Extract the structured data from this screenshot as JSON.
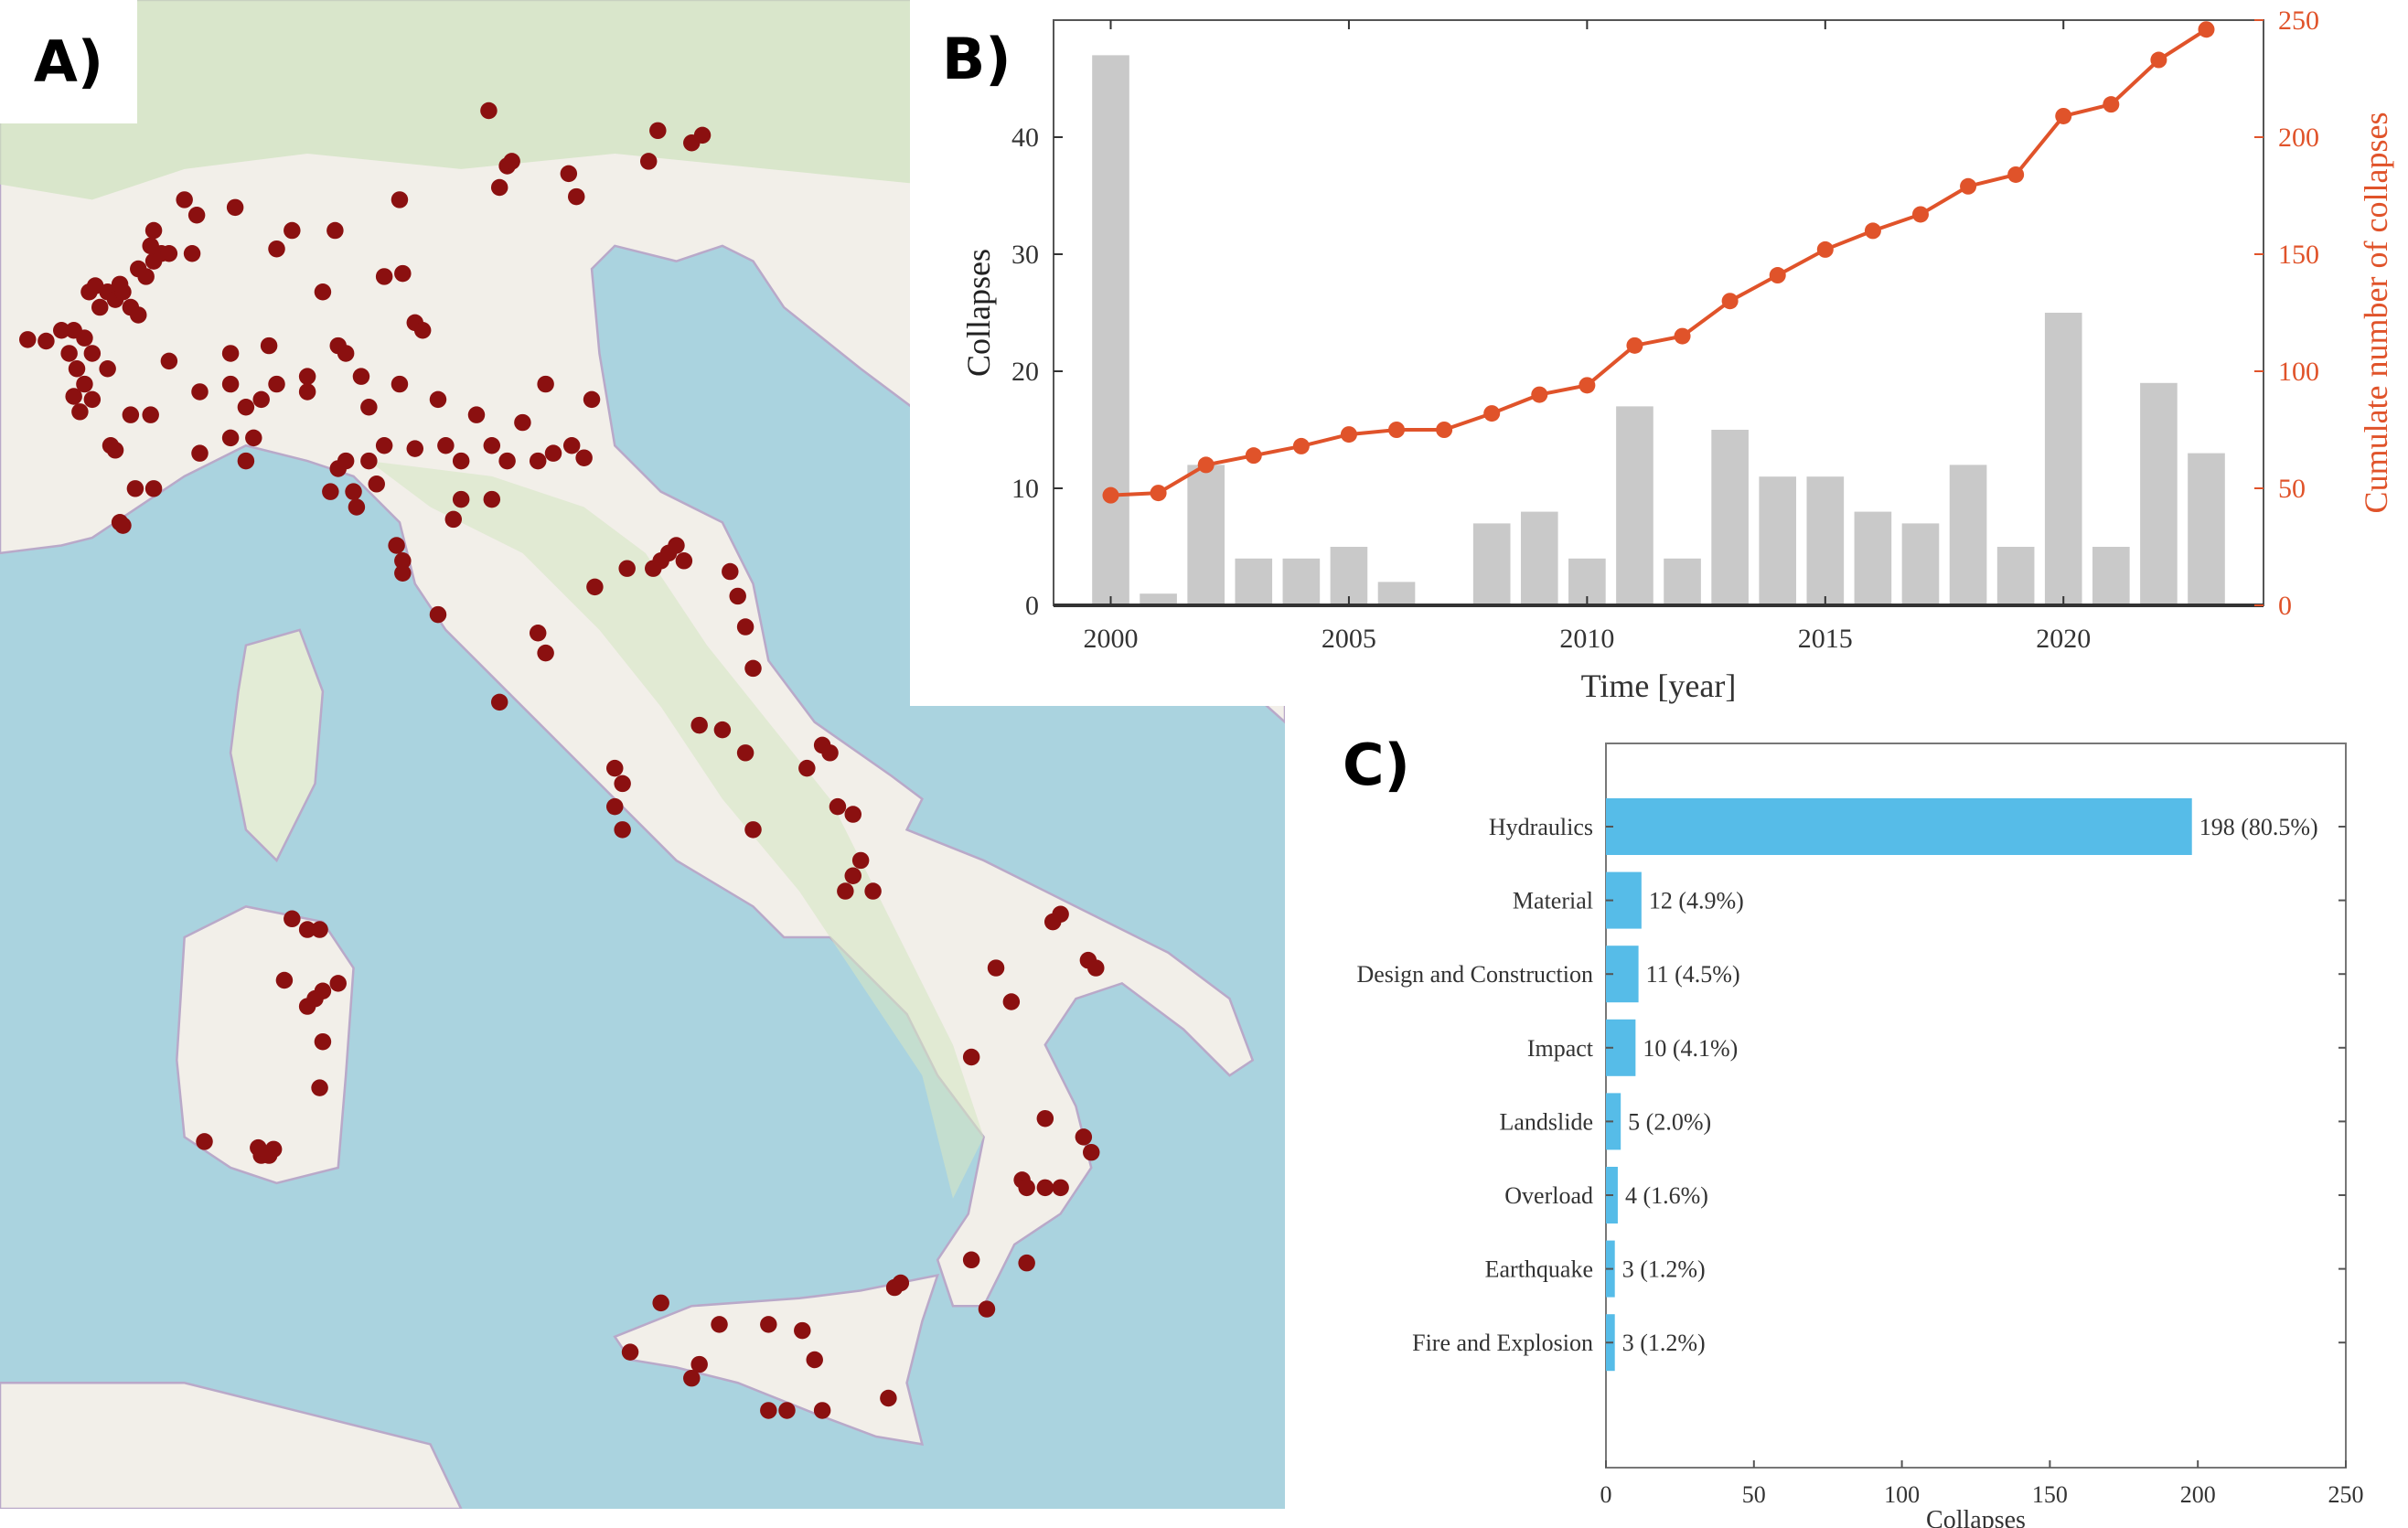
{
  "panels": {
    "a": "A)",
    "b": "B)",
    "c": "C)"
  },
  "colors": {
    "sea": "#aad3df",
    "land": "#f2efe9",
    "marker": "#8b1010",
    "bar_gray": "#c9c9c9",
    "line": "#e0532a",
    "bar_blue": "#56bce8"
  },
  "chart_data": [
    {
      "type": "bar+line",
      "xlabel": "Time [year]",
      "ylabel": "Collapses",
      "ylabel_right": "Cumulate number of collapses",
      "x": [
        2000,
        2001,
        2002,
        2003,
        2004,
        2005,
        2006,
        2007,
        2008,
        2009,
        2010,
        2011,
        2012,
        2013,
        2014,
        2015,
        2016,
        2017,
        2018,
        2019,
        2020,
        2021,
        2022,
        2023
      ],
      "series": [
        {
          "name": "Collapses",
          "type": "bar",
          "axis": "left",
          "values": [
            47,
            1,
            12,
            4,
            4,
            5,
            2,
            0,
            7,
            8,
            4,
            17,
            4,
            15,
            11,
            11,
            8,
            7,
            12,
            5,
            25,
            5,
            19,
            13
          ]
        },
        {
          "name": "Cumulate number of collapses",
          "type": "line",
          "axis": "right",
          "values": [
            47,
            48,
            60,
            64,
            68,
            73,
            75,
            75,
            82,
            90,
            94,
            111,
            115,
            130,
            141,
            152,
            160,
            167,
            179,
            184,
            209,
            214,
            233,
            246
          ]
        }
      ],
      "xticks": [
        "2000",
        "2005",
        "2010",
        "2015",
        "2020"
      ],
      "yticks_left": [
        "0",
        "10",
        "20",
        "30",
        "40"
      ],
      "yticks_right": [
        "0",
        "50",
        "100",
        "150",
        "200",
        "250"
      ],
      "xlim": [
        1998.8,
        2024.2
      ],
      "ylim": [
        0,
        50
      ],
      "ylim_right": [
        0,
        250
      ]
    },
    {
      "type": "bar",
      "orientation": "horizontal",
      "xlabel": "Collapses",
      "categories": [
        "Hydraulics",
        "Material",
        "Design and Construction",
        "Impact",
        "Landslide",
        "Overload",
        "Earthquake",
        "Fire and Explosion"
      ],
      "values": [
        198,
        12,
        11,
        10,
        5,
        4,
        3,
        3
      ],
      "data_labels": [
        "198 (80.5%)",
        "12 (4.9%)",
        "11 (4.5%)",
        "10 (4.1%)",
        "5 (2.0%)",
        "4 (1.6%)",
        "3 (1.2%)",
        "3 (1.2%)"
      ],
      "xticks": [
        "0",
        "50",
        "100",
        "150",
        "200",
        "250"
      ],
      "xlim": [
        0,
        250
      ]
    }
  ]
}
